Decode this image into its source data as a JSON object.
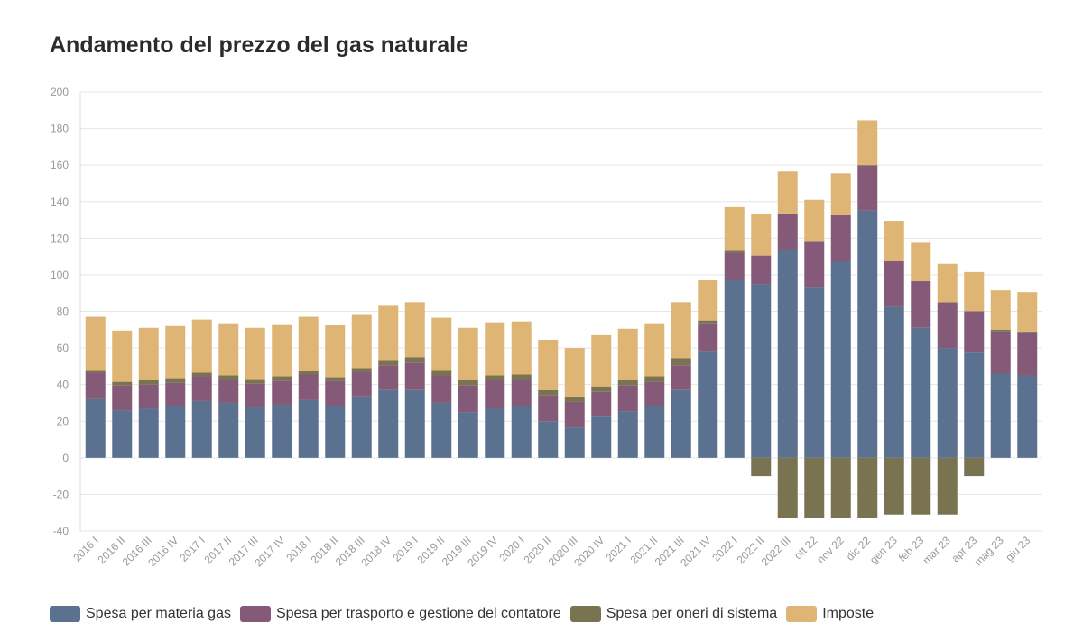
{
  "header": {
    "title": "Andamento del prezzo del gas naturale"
  },
  "chart_data": {
    "type": "bar",
    "stacked": true,
    "title": "Andamento del prezzo del gas naturale",
    "xlabel": "",
    "ylabel": "",
    "ylim": [
      -40,
      200
    ],
    "yticks": [
      -40,
      -20,
      0,
      20,
      40,
      60,
      80,
      100,
      120,
      140,
      160,
      180,
      200
    ],
    "grid": true,
    "legend_position": "bottom-left",
    "categories": [
      "2016 I",
      "2016 II",
      "2016 III",
      "2016 IV",
      "2017 I",
      "2017 II",
      "2017 III",
      "2017 IV",
      "2018 I",
      "2018 II",
      "2018 III",
      "2018 IV",
      "2019 I",
      "2019 II",
      "2019 III",
      "2019 IV",
      "2020 I",
      "2020 II",
      "2020 III",
      "2020 IV",
      "2021 I",
      "2021 II",
      "2021 III",
      "2021 IV",
      "2022 I",
      "2022 II",
      "2022 III",
      "ott 22",
      "nov 22",
      "dic 22",
      "gen 23",
      "feb 23",
      "mar 23",
      "apr 23",
      "mag 23",
      "giu 23"
    ],
    "series": [
      {
        "name": "Spesa per materia gas",
        "color": "#5a7190",
        "values": [
          32,
          26,
          27,
          28.5,
          31,
          30,
          28,
          29,
          31.5,
          28.5,
          33.5,
          37,
          37,
          30,
          25,
          27.5,
          28.5,
          20,
          16.5,
          23,
          25.5,
          28.5,
          37,
          58.5,
          97,
          95,
          114,
          93.5,
          107.5,
          135,
          83,
          71,
          60,
          58,
          46,
          45
        ]
      },
      {
        "name": "Spesa per trasporto e gestione del contatore",
        "color": "#855a78",
        "values": [
          14.5,
          13.5,
          13,
          12.5,
          13.5,
          12.5,
          12.5,
          13,
          14,
          13.5,
          13.5,
          13.5,
          15,
          15,
          14.5,
          15,
          14,
          14,
          14,
          13,
          14,
          13,
          13.5,
          15,
          15,
          15.5,
          19.5,
          25,
          25,
          25,
          24.5,
          25.5,
          25,
          22,
          23,
          23.5
        ]
      },
      {
        "name": "Spesa per oneri di sistema",
        "color": "#7a7352",
        "values": [
          1.5,
          2,
          2.5,
          2.5,
          2,
          2.5,
          2.5,
          2.5,
          2,
          2,
          2,
          3,
          3,
          3,
          3,
          2.5,
          3,
          3,
          3,
          3,
          3,
          3,
          4,
          1.5,
          1.5,
          -10,
          -33,
          -33,
          -33,
          -33,
          -31,
          -31,
          -31,
          -10,
          1,
          0.5
        ]
      },
      {
        "name": "Imposte",
        "color": "#deb574",
        "values": [
          29,
          28,
          28.5,
          28.5,
          29,
          28.5,
          28,
          28.5,
          29.5,
          28.5,
          29.5,
          30,
          30,
          28.5,
          28.5,
          29,
          29,
          27.5,
          26.5,
          28,
          28,
          29,
          30.5,
          22,
          23.5,
          23,
          23,
          22.5,
          23,
          24.5,
          22,
          21.5,
          21,
          21.5,
          21.5,
          21.5
        ]
      }
    ]
  }
}
